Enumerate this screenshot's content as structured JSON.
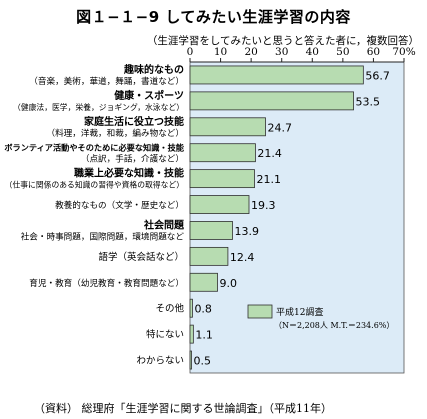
{
  "title": "図１−１−9 してみたい生涯学習の内容",
  "subtitle": "（生涯学習をしてみたいと思うと答えた者に，複数回答）",
  "source": "（資料） 総理府「生涯学習に関する世論調査」（平成11年）",
  "colors": {
    "plot_bg": "#dcebf7",
    "bar_fill": "#b7dcb1",
    "bar_stroke": "#2f2f2f"
  },
  "chart_data": {
    "type": "bar",
    "orientation": "horizontal",
    "xlim": [
      0,
      70
    ],
    "x_ticks": [
      "0",
      "10",
      "20",
      "30",
      "40",
      "50",
      "60",
      "70%"
    ],
    "categories": [
      {
        "main": "趣味的なもの",
        "sub": "（音楽，美術，華道，舞踊，書道など）"
      },
      {
        "main": "健康・スポーツ",
        "sub": "（健康法，医学，栄養，ジョギング，水泳など）"
      },
      {
        "main": "家庭生活に役立つ技能",
        "sub": "（料理，洋裁，和裁，編み物など）"
      },
      {
        "main": "ボランティア活動やそのために必要な知識・技能",
        "sub": "（点訳，手話，介護など）"
      },
      {
        "main": "職業上必要な知識・技能",
        "sub": "（仕事に関係のある知識の習得や資格の取得など）"
      },
      {
        "main": "教養的なもの（文学・歴史など）",
        "sub": ""
      },
      {
        "main": "社会問題",
        "sub": "社会・時事問題，国際問題，環境問題など"
      },
      {
        "main": "語学（英会話など）",
        "sub": ""
      },
      {
        "main": "育児・教育（幼児教育・教育問題など）",
        "sub": ""
      },
      {
        "main": "その他",
        "sub": ""
      },
      {
        "main": "特にない",
        "sub": ""
      },
      {
        "main": "わからない",
        "sub": ""
      }
    ],
    "values": [
      56.7,
      53.5,
      24.7,
      21.4,
      21.1,
      19.3,
      13.9,
      12.4,
      9.0,
      0.8,
      1.1,
      0.5
    ],
    "value_labels": [
      "56.7",
      "53.5",
      "24.7",
      "21.4",
      "21.1",
      "19.3",
      "13.9",
      "12.4",
      "9.0",
      "0.8",
      "1.1",
      "0.5"
    ],
    "legend": {
      "label": "平成12調査",
      "note": "（N＝2,208人 M.T.＝234.6%）",
      "position": "lower-right"
    }
  }
}
